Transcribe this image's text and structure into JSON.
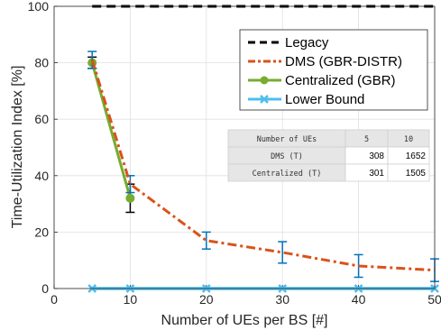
{
  "chart_data": {
    "type": "line",
    "xlabel": "Number of UEs per BS [#]",
    "ylabel": "Time-Utilization Index [%]",
    "xlim": [
      0,
      50
    ],
    "ylim": [
      0,
      100
    ],
    "xticks": [
      "0",
      "10",
      "20",
      "30",
      "40",
      "50"
    ],
    "yticks": [
      "0",
      "20",
      "40",
      "60",
      "80",
      "100"
    ],
    "grid": true,
    "legend_position": "top-right",
    "series": [
      {
        "name": "Legacy",
        "color": "#000000",
        "style": "dashed",
        "marker": "none",
        "x": [
          5,
          50
        ],
        "y": [
          100,
          100
        ]
      },
      {
        "name": "DMS (GBR-DISTR)",
        "color": "#d95319",
        "style": "dash-dot",
        "marker": "none",
        "x": [
          5,
          10,
          20,
          30,
          40,
          50
        ],
        "y": [
          81,
          37,
          17,
          12.8,
          8,
          6.5
        ],
        "error": [
          3,
          3,
          3,
          3.8,
          4,
          4
        ]
      },
      {
        "name": "Centralized (GBR)",
        "color": "#77ac30",
        "style": "solid",
        "marker": "circle",
        "x": [
          5,
          10
        ],
        "y": [
          80,
          32
        ],
        "error": [
          2,
          5
        ]
      },
      {
        "name": "Lower Bound",
        "color": "#4dbeee",
        "style": "solid",
        "marker": "x",
        "x": [
          5,
          10,
          20,
          30,
          40,
          50
        ],
        "y": [
          0,
          0,
          0,
          0,
          0,
          0
        ]
      }
    ],
    "inset_table": {
      "header": [
        "Number of UEs",
        "5",
        "10"
      ],
      "rows": [
        [
          "DMS (T)",
          "308",
          "1652"
        ],
        [
          "Centralized (T)",
          "301",
          "1505"
        ]
      ]
    }
  }
}
